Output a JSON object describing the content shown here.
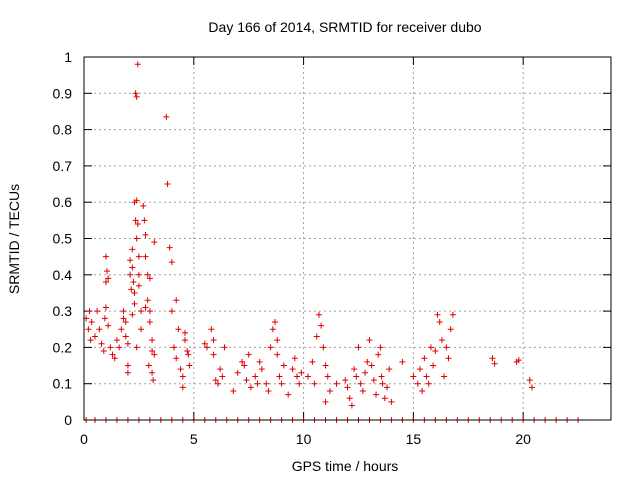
{
  "chart_data": {
    "type": "scatter",
    "title": "Day 166 of 2014, SRMTID for receiver dubo",
    "xlabel": "GPS time / hours",
    "ylabel": "SRMTID / TECUs",
    "xlim": [
      0,
      24
    ],
    "ylim": [
      0,
      1
    ],
    "x_ticks": [
      0,
      5,
      10,
      15,
      20
    ],
    "x_tick_labels": [
      "0",
      "5",
      "10",
      "15",
      "20"
    ],
    "y_ticks": [
      0,
      0.1,
      0.2,
      0.3,
      0.4,
      0.5,
      0.6,
      0.7,
      0.8,
      0.9,
      1
    ],
    "y_tick_labels": [
      "0",
      "0.1",
      "0.2",
      "0.3",
      "0.4",
      "0.5",
      "0.6",
      "0.7",
      "0.8",
      "0.9",
      "1"
    ],
    "grid": true,
    "marker": "+",
    "marker_color": "#e00000",
    "series": [
      {
        "name": "SRMTID",
        "points": [
          [
            0.1,
            0.28
          ],
          [
            0.2,
            0.25
          ],
          [
            0.3,
            0.22
          ],
          [
            0.25,
            0.3
          ],
          [
            0.35,
            0.27
          ],
          [
            0.5,
            0.23
          ],
          [
            0.6,
            0.3
          ],
          [
            0.7,
            0.25
          ],
          [
            0.8,
            0.21
          ],
          [
            0.9,
            0.19
          ],
          [
            1.0,
            0.45
          ],
          [
            1.05,
            0.41
          ],
          [
            1.1,
            0.39
          ],
          [
            1.0,
            0.38
          ],
          [
            1.0,
            0.31
          ],
          [
            0.95,
            0.28
          ],
          [
            1.1,
            0.26
          ],
          [
            1.2,
            0.2
          ],
          [
            1.3,
            0.18
          ],
          [
            1.4,
            0.17
          ],
          [
            1.5,
            0.22
          ],
          [
            1.6,
            0.2
          ],
          [
            1.7,
            0.25
          ],
          [
            1.8,
            0.3
          ],
          [
            1.8,
            0.28
          ],
          [
            1.9,
            0.27
          ],
          [
            1.9,
            0.23
          ],
          [
            2.0,
            0.21
          ],
          [
            2.0,
            0.15
          ],
          [
            2.0,
            0.13
          ],
          [
            2.1,
            0.44
          ],
          [
            2.1,
            0.4
          ],
          [
            2.15,
            0.36
          ],
          [
            2.2,
            0.47
          ],
          [
            2.2,
            0.42
          ],
          [
            2.25,
            0.38
          ],
          [
            2.3,
            0.35
          ],
          [
            2.3,
            0.32
          ],
          [
            2.2,
            0.29
          ],
          [
            2.35,
            0.55
          ],
          [
            2.3,
            0.6
          ],
          [
            2.4,
            0.605
          ],
          [
            2.45,
            0.54
          ],
          [
            2.4,
            0.5
          ],
          [
            2.5,
            0.45
          ],
          [
            2.5,
            0.4
          ],
          [
            2.5,
            0.37
          ],
          [
            2.6,
            0.3
          ],
          [
            2.6,
            0.25
          ],
          [
            2.4,
            0.2
          ],
          [
            2.45,
            0.98
          ],
          [
            2.35,
            0.9
          ],
          [
            2.4,
            0.89
          ],
          [
            2.7,
            0.59
          ],
          [
            2.75,
            0.55
          ],
          [
            2.8,
            0.51
          ],
          [
            2.8,
            0.45
          ],
          [
            2.9,
            0.4
          ],
          [
            2.9,
            0.33
          ],
          [
            3.0,
            0.3
          ],
          [
            3.0,
            0.27
          ],
          [
            3.1,
            0.22
          ],
          [
            3.1,
            0.19
          ],
          [
            3.2,
            0.18
          ],
          [
            3.2,
            0.49
          ],
          [
            3.0,
            0.39
          ],
          [
            2.95,
            0.15
          ],
          [
            3.1,
            0.13
          ],
          [
            3.15,
            0.11
          ],
          [
            2.8,
            0.31
          ],
          [
            3.75,
            0.835
          ],
          [
            3.8,
            0.65
          ],
          [
            3.9,
            0.475
          ],
          [
            4.0,
            0.435
          ],
          [
            4.0,
            0.3
          ],
          [
            4.2,
            0.33
          ],
          [
            4.3,
            0.25
          ],
          [
            4.1,
            0.2
          ],
          [
            4.2,
            0.17
          ],
          [
            4.4,
            0.14
          ],
          [
            4.5,
            0.12
          ],
          [
            4.5,
            0.09
          ],
          [
            4.6,
            0.24
          ],
          [
            4.6,
            0.22
          ],
          [
            4.7,
            0.19
          ],
          [
            4.75,
            0.18
          ],
          [
            4.8,
            0.15
          ],
          [
            5.5,
            0.21
          ],
          [
            5.6,
            0.2
          ],
          [
            5.8,
            0.25
          ],
          [
            5.9,
            0.22
          ],
          [
            5.9,
            0.18
          ],
          [
            6.0,
            0.11
          ],
          [
            6.1,
            0.1
          ],
          [
            6.2,
            0.14
          ],
          [
            6.3,
            0.12
          ],
          [
            6.4,
            0.2
          ],
          [
            6.8,
            0.08
          ],
          [
            7.0,
            0.13
          ],
          [
            7.2,
            0.16
          ],
          [
            7.3,
            0.15
          ],
          [
            7.4,
            0.11
          ],
          [
            7.5,
            0.18
          ],
          [
            7.6,
            0.09
          ],
          [
            7.8,
            0.12
          ],
          [
            7.9,
            0.1
          ],
          [
            8.0,
            0.16
          ],
          [
            8.1,
            0.14
          ],
          [
            8.3,
            0.1
          ],
          [
            8.4,
            0.08
          ],
          [
            8.5,
            0.2
          ],
          [
            8.6,
            0.25
          ],
          [
            8.7,
            0.27
          ],
          [
            8.8,
            0.22
          ],
          [
            8.8,
            0.18
          ],
          [
            8.9,
            0.12
          ],
          [
            9.0,
            0.1
          ],
          [
            9.1,
            0.15
          ],
          [
            9.3,
            0.07
          ],
          [
            9.5,
            0.14
          ],
          [
            9.6,
            0.17
          ],
          [
            9.7,
            0.12
          ],
          [
            9.8,
            0.1
          ],
          [
            9.9,
            0.13
          ],
          [
            10.2,
            0.12
          ],
          [
            10.4,
            0.16
          ],
          [
            10.5,
            0.1
          ],
          [
            10.6,
            0.23
          ],
          [
            10.7,
            0.29
          ],
          [
            10.8,
            0.26
          ],
          [
            10.9,
            0.2
          ],
          [
            11.0,
            0.15
          ],
          [
            11.1,
            0.12
          ],
          [
            11.2,
            0.08
          ],
          [
            11.0,
            0.05
          ],
          [
            11.5,
            0.1
          ],
          [
            11.9,
            0.11
          ],
          [
            12.0,
            0.09
          ],
          [
            12.1,
            0.06
          ],
          [
            12.2,
            0.04
          ],
          [
            12.3,
            0.14
          ],
          [
            12.4,
            0.12
          ],
          [
            12.5,
            0.2
          ],
          [
            12.6,
            0.1
          ],
          [
            12.7,
            0.08
          ],
          [
            12.8,
            0.13
          ],
          [
            12.9,
            0.16
          ],
          [
            13.0,
            0.22
          ],
          [
            13.1,
            0.15
          ],
          [
            13.2,
            0.11
          ],
          [
            13.3,
            0.07
          ],
          [
            13.4,
            0.18
          ],
          [
            13.5,
            0.2
          ],
          [
            13.55,
            0.12
          ],
          [
            13.6,
            0.1
          ],
          [
            13.7,
            0.06
          ],
          [
            13.8,
            0.09
          ],
          [
            13.9,
            0.14
          ],
          [
            14.0,
            0.05
          ],
          [
            14.5,
            0.16
          ],
          [
            15.0,
            0.12
          ],
          [
            15.2,
            0.1
          ],
          [
            15.3,
            0.14
          ],
          [
            15.4,
            0.08
          ],
          [
            15.5,
            0.17
          ],
          [
            15.6,
            0.12
          ],
          [
            15.7,
            0.1
          ],
          [
            15.8,
            0.2
          ],
          [
            15.9,
            0.15
          ],
          [
            16.0,
            0.19
          ],
          [
            16.1,
            0.29
          ],
          [
            16.2,
            0.27
          ],
          [
            16.3,
            0.22
          ],
          [
            16.4,
            0.12
          ],
          [
            16.5,
            0.2
          ],
          [
            16.6,
            0.17
          ],
          [
            16.7,
            0.25
          ],
          [
            16.8,
            0.29
          ],
          [
            18.6,
            0.17
          ],
          [
            18.7,
            0.155
          ],
          [
            19.7,
            0.16
          ],
          [
            19.8,
            0.165
          ],
          [
            20.3,
            0.11
          ],
          [
            20.4,
            0.09
          ],
          [
            0.1,
            0
          ],
          [
            0.5,
            0
          ],
          [
            1,
            0
          ],
          [
            1.5,
            0
          ],
          [
            2,
            0
          ],
          [
            2.5,
            0
          ],
          [
            3,
            0
          ],
          [
            3.5,
            0
          ],
          [
            4,
            0
          ],
          [
            4.5,
            0
          ],
          [
            5,
            0
          ],
          [
            5.5,
            0
          ],
          [
            6,
            0
          ],
          [
            6.5,
            0
          ],
          [
            7,
            0
          ],
          [
            7.5,
            0
          ],
          [
            8,
            0
          ],
          [
            8.5,
            0
          ],
          [
            9,
            0
          ],
          [
            9.5,
            0
          ],
          [
            10,
            0
          ],
          [
            10.5,
            0
          ],
          [
            11,
            0
          ],
          [
            11.5,
            0
          ],
          [
            12,
            0
          ],
          [
            12.5,
            0
          ],
          [
            13,
            0
          ],
          [
            13.5,
            0
          ],
          [
            14,
            0
          ],
          [
            14.5,
            0
          ],
          [
            15,
            0
          ],
          [
            15.5,
            0
          ],
          [
            16,
            0
          ],
          [
            16.5,
            0
          ],
          [
            17,
            0
          ],
          [
            17.5,
            0
          ],
          [
            18,
            0
          ],
          [
            18.5,
            0
          ],
          [
            19,
            0
          ],
          [
            19.5,
            0
          ],
          [
            20,
            0
          ],
          [
            20.5,
            0
          ],
          [
            21,
            0
          ],
          [
            21.5,
            0
          ],
          [
            22,
            0
          ],
          [
            22.5,
            0
          ]
        ]
      }
    ]
  }
}
